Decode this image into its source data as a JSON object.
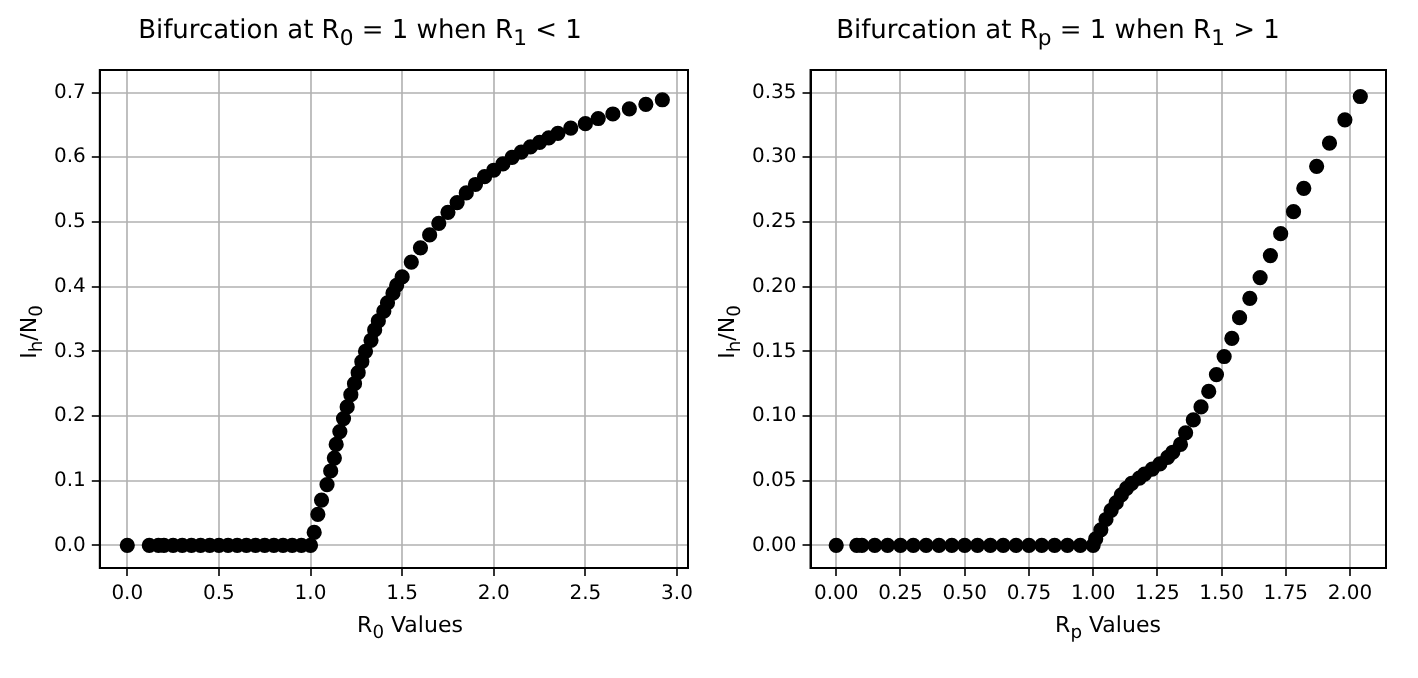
{
  "chart_data": [
    {
      "type": "scatter",
      "title": "Bifurcation at R$_{0}$ = 1 when R$_{1}$ < 1",
      "xlabel": "R$_{0}$ Values",
      "ylabel": "I$_{h}$/N$_{0}$",
      "color": "#000000",
      "marker": "circle",
      "grid": true,
      "x": [
        0,
        0.12,
        0.17,
        0.2,
        0.25,
        0.3,
        0.35,
        0.4,
        0.45,
        0.5,
        0.55,
        0.6,
        0.65,
        0.7,
        0.75,
        0.8,
        0.85,
        0.9,
        0.95,
        1.0,
        1.02,
        1.04,
        1.06,
        1.09,
        1.11,
        1.13,
        1.14,
        1.16,
        1.18,
        1.2,
        1.22,
        1.24,
        1.26,
        1.28,
        1.3,
        1.33,
        1.35,
        1.37,
        1.4,
        1.42,
        1.45,
        1.47,
        1.5,
        1.55,
        1.6,
        1.65,
        1.7,
        1.75,
        1.8,
        1.85,
        1.9,
        1.95,
        2.0,
        2.05,
        2.1,
        2.15,
        2.2,
        2.25,
        2.3,
        2.35,
        2.42,
        2.5,
        2.57,
        2.65,
        2.74,
        2.83,
        2.92
      ],
      "values": [
        0,
        0,
        0,
        0,
        0,
        0,
        0,
        0,
        0,
        0,
        0,
        0,
        0,
        0,
        0,
        0,
        0,
        0,
        0,
        0,
        0.02,
        0.048,
        0.07,
        0.094,
        0.115,
        0.135,
        0.156,
        0.176,
        0.196,
        0.214,
        0.233,
        0.25,
        0.267,
        0.284,
        0.3,
        0.317,
        0.333,
        0.347,
        0.362,
        0.375,
        0.39,
        0.402,
        0.415,
        0.438,
        0.46,
        0.48,
        0.498,
        0.515,
        0.53,
        0.545,
        0.558,
        0.57,
        0.58,
        0.59,
        0.6,
        0.608,
        0.616,
        0.623,
        0.63,
        0.637,
        0.645,
        0.652,
        0.66,
        0.667,
        0.675,
        0.682,
        0.689
      ],
      "xlim": [
        -0.15,
        3.06
      ],
      "ylim": [
        -0.035,
        0.735
      ],
      "xticks": [
        {
          "value": 0,
          "label": "0.0"
        },
        {
          "value": 0.5,
          "label": "0.5"
        },
        {
          "value": 1,
          "label": "1.0"
        },
        {
          "value": 1.5,
          "label": "1.5"
        },
        {
          "value": 2,
          "label": "2.0"
        },
        {
          "value": 2.5,
          "label": "2.5"
        },
        {
          "value": 3,
          "label": "3.0"
        }
      ],
      "yticks": [
        {
          "value": 0,
          "label": "0.0"
        },
        {
          "value": 0.1,
          "label": "0.1"
        },
        {
          "value": 0.2,
          "label": "0.2"
        },
        {
          "value": 0.3,
          "label": "0.3"
        },
        {
          "value": 0.4,
          "label": "0.4"
        },
        {
          "value": 0.5,
          "label": "0.5"
        },
        {
          "value": 0.6,
          "label": "0.6"
        },
        {
          "value": 0.7,
          "label": "0.7"
        }
      ]
    },
    {
      "type": "scatter",
      "title": "Bifurcation at R$_{p}$ = 1 when R$_{1}$ > 1",
      "xlabel": "R$_{p}$ Values",
      "ylabel": "I$_{h}$/N$_{0}$",
      "color": "#000000",
      "marker": "circle",
      "grid": true,
      "x": [
        0,
        0.08,
        0.1,
        0.15,
        0.2,
        0.25,
        0.3,
        0.35,
        0.4,
        0.45,
        0.5,
        0.55,
        0.6,
        0.65,
        0.7,
        0.75,
        0.8,
        0.85,
        0.9,
        0.95,
        1.0,
        1.01,
        1.03,
        1.05,
        1.07,
        1.09,
        1.11,
        1.13,
        1.15,
        1.18,
        1.2,
        1.23,
        1.26,
        1.29,
        1.31,
        1.34,
        1.36,
        1.39,
        1.42,
        1.45,
        1.48,
        1.51,
        1.54,
        1.57,
        1.61,
        1.65,
        1.69,
        1.73,
        1.78,
        1.82,
        1.87,
        1.92,
        1.98,
        2.04
      ],
      "values": [
        0,
        0,
        0,
        0,
        0,
        0,
        0,
        0,
        0,
        0,
        0,
        0,
        0,
        0,
        0,
        0,
        0,
        0,
        0,
        0,
        0,
        0.005,
        0.012,
        0.02,
        0.027,
        0.033,
        0.039,
        0.044,
        0.048,
        0.052,
        0.055,
        0.059,
        0.063,
        0.068,
        0.072,
        0.078,
        0.087,
        0.097,
        0.107,
        0.119,
        0.132,
        0.146,
        0.16,
        0.176,
        0.191,
        0.207,
        0.224,
        0.241,
        0.258,
        0.276,
        0.293,
        0.311,
        0.329,
        0.347
      ],
      "xlim": [
        -0.1,
        2.14
      ],
      "ylim": [
        -0.0175,
        0.3675
      ],
      "xticks": [
        {
          "value": 0,
          "label": "0.00"
        },
        {
          "value": 0.25,
          "label": "0.25"
        },
        {
          "value": 0.5,
          "label": "0.50"
        },
        {
          "value": 0.75,
          "label": "0.75"
        },
        {
          "value": 1,
          "label": "1.00"
        },
        {
          "value": 1.25,
          "label": "1.25"
        },
        {
          "value": 1.5,
          "label": "1.50"
        },
        {
          "value": 1.75,
          "label": "1.75"
        },
        {
          "value": 2,
          "label": "2.00"
        }
      ],
      "yticks": [
        {
          "value": 0,
          "label": "0.00"
        },
        {
          "value": 0.05,
          "label": "0.05"
        },
        {
          "value": 0.1,
          "label": "0.10"
        },
        {
          "value": 0.15,
          "label": "0.15"
        },
        {
          "value": 0.2,
          "label": "0.20"
        },
        {
          "value": 0.25,
          "label": "0.25"
        },
        {
          "value": 0.3,
          "label": "0.30"
        },
        {
          "value": 0.35,
          "label": "0.35"
        }
      ]
    }
  ]
}
